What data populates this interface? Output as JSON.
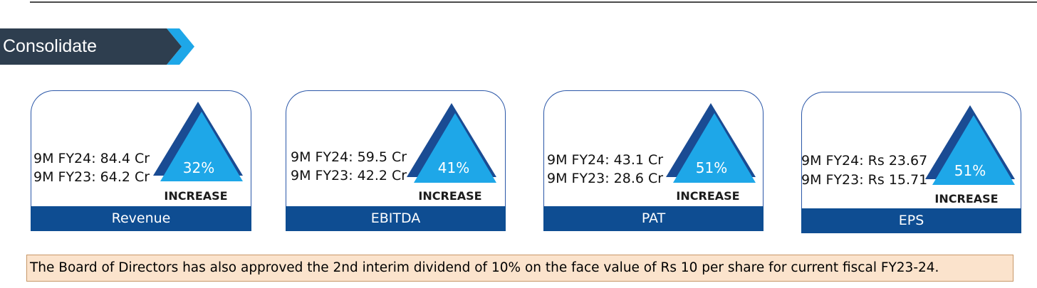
{
  "section": {
    "title": "Consolidate"
  },
  "metrics": [
    {
      "fy24": "9M FY24: 84.4 Cr",
      "fy23": "9M FY23: 64.2 Cr",
      "change": "32%",
      "direction": "INCREASE",
      "label": "Revenue"
    },
    {
      "fy24": "9M FY24: 59.5 Cr",
      "fy23": "9M FY23: 42.2 Cr",
      "change": "41%",
      "direction": "INCREASE",
      "label": "EBITDA"
    },
    {
      "fy24": "9M FY24: 43.1 Cr",
      "fy23": "9M FY23: 28.6 Cr",
      "change": "51%",
      "direction": "INCREASE",
      "label": "PAT"
    },
    {
      "fy24": "9M FY24: Rs 23.67",
      "fy23": "9M FY23: Rs 15.71",
      "change": "51%",
      "direction": "INCREASE",
      "label": "EPS"
    }
  ],
  "note": "The Board of Directors has also approved the 2nd interim dividend of 10% on the face value of Rs 10 per share for current fiscal FY23-24.",
  "colors": {
    "banner": "#2e3e4f",
    "accent": "#1ea7e8",
    "triangle_dark": "#1a4b93",
    "triangle_light": "#1ea7e8",
    "bar": "#0e4d92",
    "note_bg": "#fbe3cc"
  }
}
